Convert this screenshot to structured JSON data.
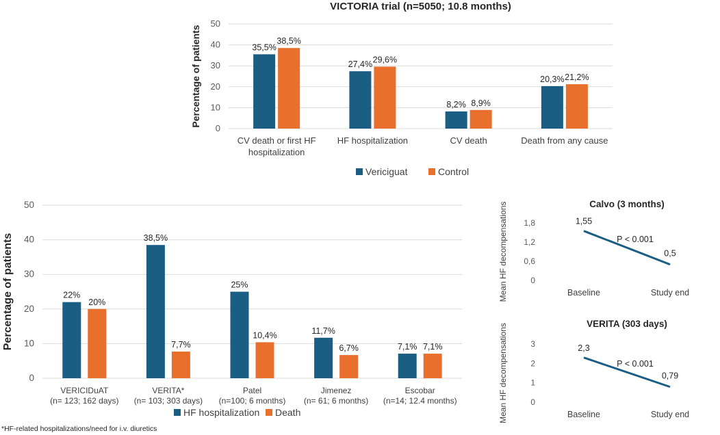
{
  "colors": {
    "vericiguat": "#1b5e84",
    "control": "#e86f2c",
    "line": "#1b5e84"
  },
  "chart_data": [
    {
      "type": "bar",
      "title": "VICTORIA trial (n=5050; 10.8 months)",
      "ylabel": "Percentage of patients",
      "ylim": [
        0,
        50
      ],
      "yticks": [
        0,
        10,
        20,
        30,
        40,
        50
      ],
      "categories": [
        [
          "CV death or first HF",
          "hospitalization"
        ],
        [
          "HF hospitalization"
        ],
        [
          "CV death"
        ],
        [
          "Death from any cause"
        ]
      ],
      "series": [
        {
          "name": "Vericiguat",
          "values": [
            35.5,
            27.4,
            8.2,
            20.3
          ],
          "labels": [
            "35,5%",
            "27,4%",
            "8,2%",
            "20,3%"
          ]
        },
        {
          "name": "Control",
          "values": [
            38.5,
            29.6,
            8.9,
            21.2
          ],
          "labels": [
            "38,5%",
            "29,6%",
            "8,9%",
            "21,2%"
          ]
        }
      ],
      "legend": "bottom",
      "grid": true
    },
    {
      "type": "bar",
      "title": "",
      "ylabel": "Percentage of patients",
      "ylim": [
        0,
        50
      ],
      "yticks": [
        0,
        10,
        20,
        30,
        40,
        50
      ],
      "categories": [
        [
          "VERICIDuAT",
          "(n= 123; 162 days)"
        ],
        [
          "VERITA*",
          "(n= 103; 303 days)"
        ],
        [
          "Patel",
          "(n=100; 6 months)"
        ],
        [
          "Jimenez",
          "(n= 61; 6 months)"
        ],
        [
          "Escobar",
          "(n=14; 12.4 months)"
        ]
      ],
      "series": [
        {
          "name": "HF hospitalization",
          "values": [
            22,
            38.5,
            25,
            11.7,
            7.1
          ],
          "labels": [
            "22%",
            "38,5%",
            "25%",
            "11,7%",
            "7,1%"
          ]
        },
        {
          "name": "Death",
          "values": [
            20,
            7.7,
            10.4,
            6.7,
            7.1
          ],
          "labels": [
            "20%",
            "7,7%",
            "10,4%",
            "6,7%",
            "7,1%"
          ]
        }
      ],
      "legend": "bottom",
      "grid": true
    },
    {
      "type": "line",
      "title": "Calvo (3 months)",
      "ylabel": "Mean HF decompensations",
      "ylim": [
        0,
        1.8
      ],
      "yticks": [
        "0",
        "0,6",
        "1,2",
        "1,8"
      ],
      "yticks_values": [
        0,
        0.6,
        1.2,
        1.8
      ],
      "categories": [
        "Baseline",
        "Study end"
      ],
      "values": [
        1.55,
        0.5
      ],
      "labels": [
        "1,55",
        "0,5"
      ],
      "annotation": "P < 0.001",
      "grid": false
    },
    {
      "type": "line",
      "title": "VERITA  (303 days)",
      "ylabel": "Mean HF decompensations",
      "ylim": [
        0,
        3
      ],
      "yticks": [
        "0",
        "1",
        "2",
        "3"
      ],
      "yticks_values": [
        0,
        1,
        2,
        3
      ],
      "categories": [
        "Baseline",
        "Study end"
      ],
      "values": [
        2.3,
        0.79
      ],
      "labels": [
        "2,3",
        "0,79"
      ],
      "annotation": "P < 0.001",
      "grid": false
    }
  ],
  "footnote": "*HF-related hospitalizations/need for i.v. diuretics"
}
